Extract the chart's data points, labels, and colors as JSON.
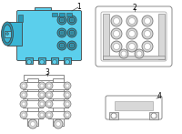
{
  "bg_color": "#ffffff",
  "light_blue": "#5bcfec",
  "mid_blue": "#3ab5d5",
  "dark_blue": "#2898b5",
  "outline_color": "#444444",
  "light_gray": "#d8d8d8",
  "mid_gray": "#aaaaaa",
  "dark_gray": "#777777",
  "label1": "1",
  "label2": "2",
  "label3": "3",
  "label4": "4",
  "font_size": 5.5
}
